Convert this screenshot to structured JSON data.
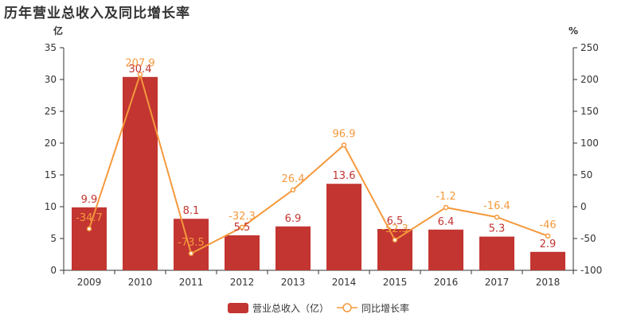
{
  "title": "历年营业总收入及同比增长率",
  "colors": {
    "bar": "#c23531",
    "line": "#f5993c",
    "axis": "#333333"
  },
  "chart_data": {
    "type": "bar",
    "title": "历年营业总收入及同比增长率",
    "categories": [
      "2009",
      "2010",
      "2011",
      "2012",
      "2013",
      "2014",
      "2015",
      "2016",
      "2017",
      "2018"
    ],
    "y_left": {
      "unit": "亿",
      "min": 0,
      "max": 35,
      "ticks": [
        "0",
        "5",
        "10",
        "15",
        "20",
        "25",
        "30",
        "35"
      ]
    },
    "y_right": {
      "unit": "%",
      "min": -100,
      "max": 250,
      "ticks": [
        "-100",
        "-50",
        "0",
        "50",
        "100",
        "150",
        "200",
        "250"
      ]
    },
    "series": [
      {
        "name": "营业总收入（亿）",
        "type": "bar",
        "axis": "left",
        "values": [
          9.9,
          30.4,
          8.1,
          5.5,
          6.9,
          13.6,
          6.5,
          6.4,
          5.3,
          2.9
        ],
        "labels": [
          "9.9",
          "30.4",
          "8.1",
          "5.5",
          "6.9",
          "13.6",
          "6.5",
          "6.4",
          "5.3",
          "2.9"
        ]
      },
      {
        "name": "同比增长率",
        "type": "line",
        "axis": "right",
        "values": [
          -34.7,
          207.9,
          -73.5,
          -32.3,
          26.4,
          96.9,
          -52.3,
          -1.2,
          -16.4,
          -46
        ],
        "labels": [
          "-34.7",
          "207.9",
          "-73.5",
          "-32.3",
          "26.4",
          "96.9",
          "-52.3",
          "-1.2",
          "-16.4",
          "-46"
        ]
      }
    ],
    "legend": {
      "position": "bottom",
      "items": [
        "营业总收入（亿）",
        "同比增长率"
      ]
    },
    "grid": false
  }
}
